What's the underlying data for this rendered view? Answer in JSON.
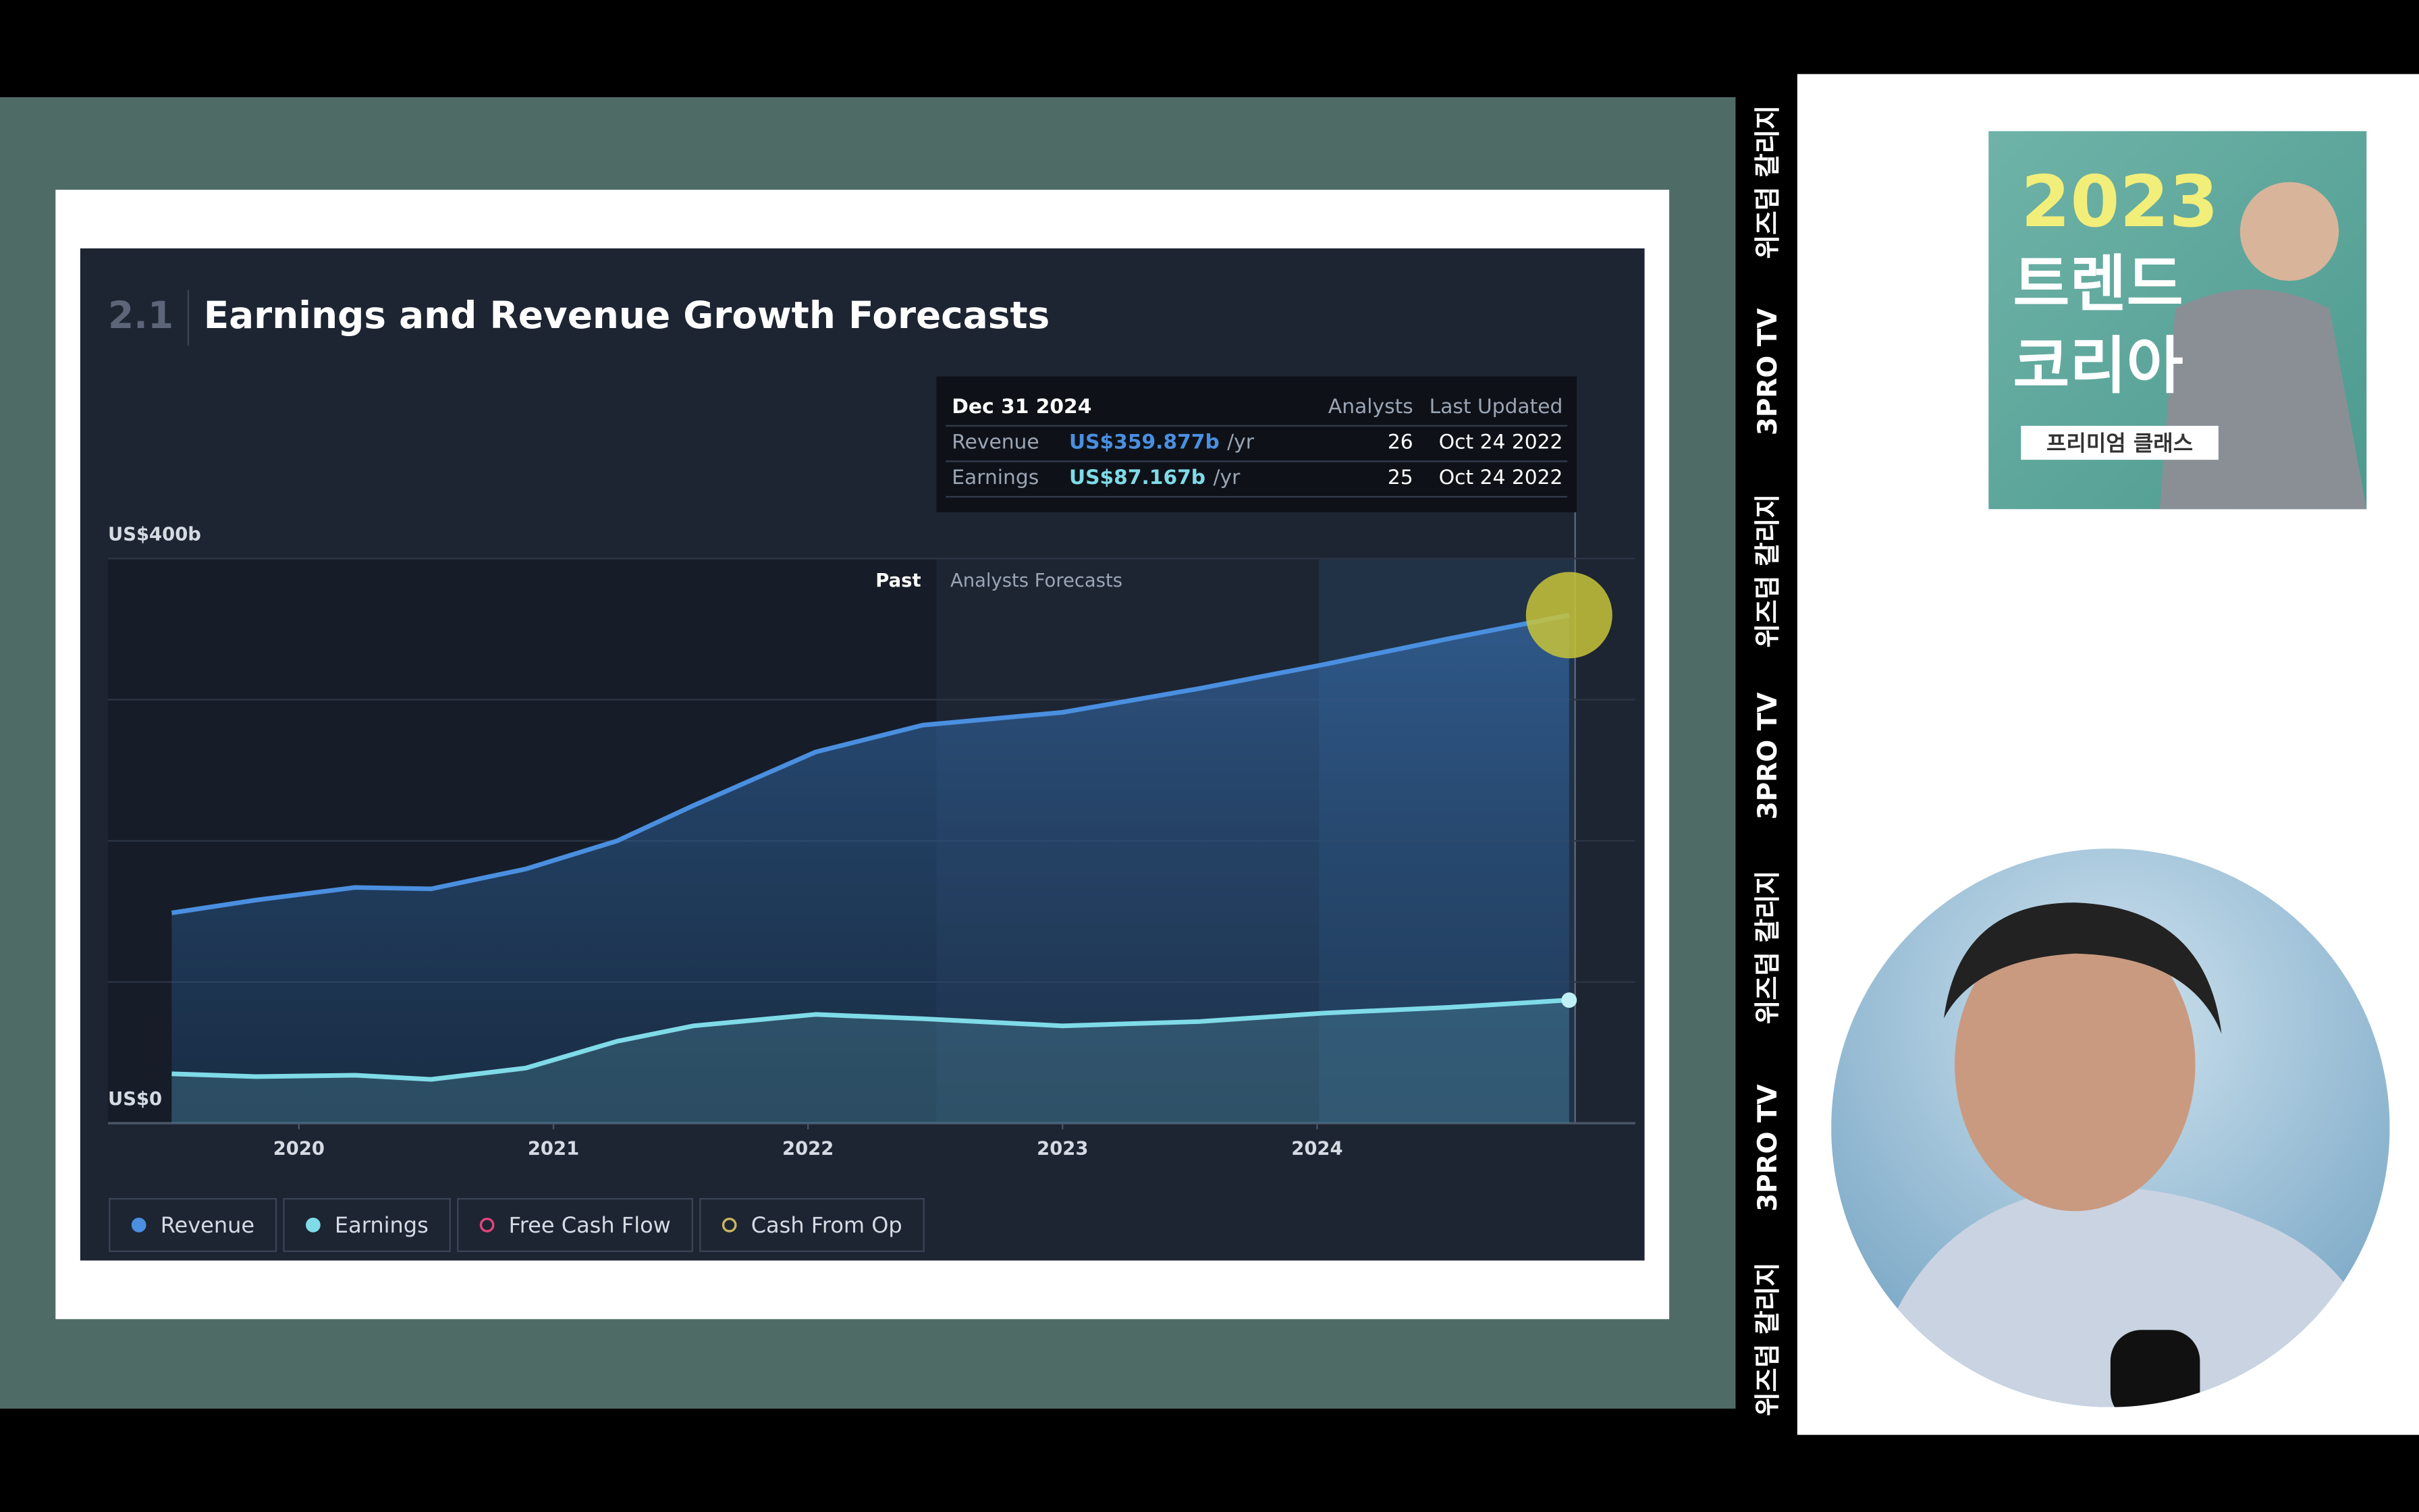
{
  "chart_data": {
    "type": "line",
    "section": "2.1",
    "title": "Earnings and Revenue Growth Forecasts",
    "past_label": "Past",
    "forecast_label": "Analysts Forecasts",
    "x": [
      2019.5,
      2019.83,
      2020.22,
      2020.52,
      2020.89,
      2021.25,
      2021.55,
      2022.03,
      2022.45,
      2023.0,
      2023.54,
      2024.03,
      2024.51,
      2024.99
    ],
    "series": [
      {
        "name": "Revenue",
        "color": "#4a8fe0",
        "values": [
          149,
          158,
          167,
          166,
          180,
          200,
          225,
          263,
          282,
          291,
          308,
          325,
          343,
          359.877
        ],
        "value_labels": [
          null,
          null,
          null,
          null,
          null,
          null,
          null,
          null,
          null,
          null,
          null,
          null,
          null,
          "US$359.877b"
        ]
      },
      {
        "name": "Earnings",
        "color": "#7fdbe8",
        "values": [
          35,
          33,
          34,
          31,
          39,
          58,
          69,
          77,
          74,
          69,
          72,
          78,
          82,
          87.167
        ],
        "value_labels": [
          null,
          null,
          null,
          null,
          null,
          null,
          null,
          null,
          null,
          null,
          null,
          null,
          null,
          "US$87.167b"
        ]
      },
      {
        "name": "Free Cash Flow",
        "color": "#e0457b",
        "values": [
          null,
          null,
          null,
          null,
          null,
          null,
          null,
          null,
          null,
          null,
          null,
          null,
          null,
          null
        ]
      },
      {
        "name": "Cash From Op",
        "color": "#c8b560",
        "values": [
          null,
          null,
          null,
          null,
          null,
          null,
          null,
          null,
          null,
          null,
          null,
          null,
          null,
          null
        ]
      }
    ],
    "xlim": [
      2019.25,
      2025.25
    ],
    "xticks": [
      2020,
      2021,
      2022,
      2023,
      2024
    ],
    "ylim": [
      0,
      400
    ],
    "yticks": [
      {
        "value": 0,
        "label": "US$0"
      },
      {
        "value": 100,
        "label": null
      },
      {
        "value": 200,
        "label": null
      },
      {
        "value": 300,
        "label": null
      },
      {
        "value": 400,
        "label": "US$400b"
      }
    ],
    "grid": true,
    "tooltip": {
      "date": "Dec 31 2024",
      "headers": [
        "Analysts",
        "Last Updated"
      ],
      "unit": "/yr",
      "analysts": [
        26,
        25
      ],
      "updated": [
        "Oct 24 2022",
        "Oct 24 2022"
      ]
    }
  },
  "sidebar": [
    "위즈덤 칼리지",
    "3PRO TV",
    "위즈덤 칼리지",
    "3PRO TV",
    "위즈덤 칼리지",
    "3PRO TV",
    "위즈덤 칼리지"
  ],
  "thumbnail": {
    "year": "2023",
    "line1": "트렌드",
    "line2": "코리아",
    "badge": "프리미엄 클래스"
  }
}
